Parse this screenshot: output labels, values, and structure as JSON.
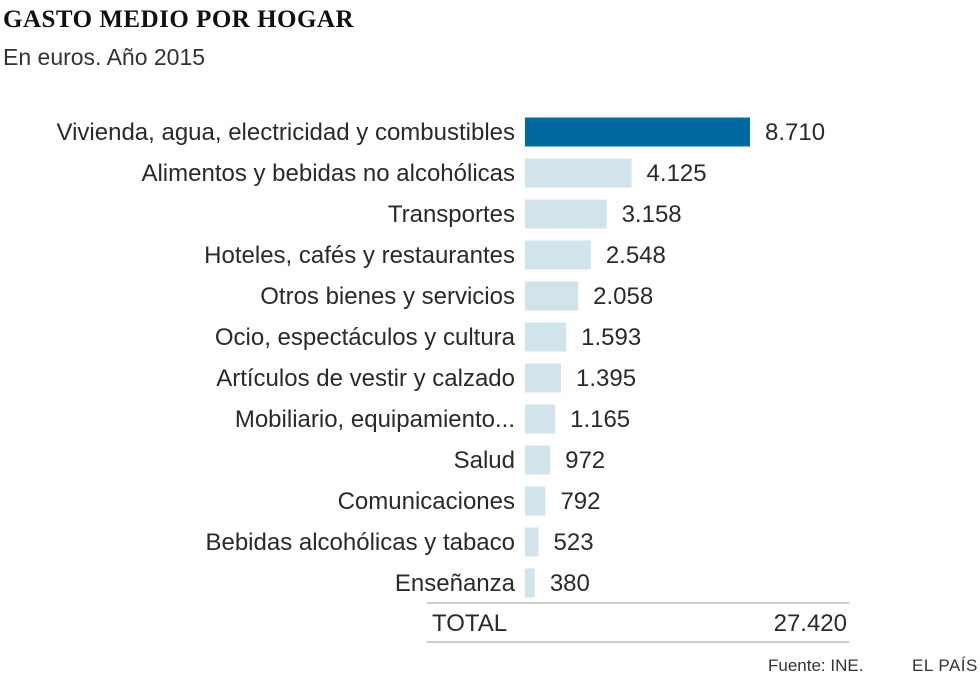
{
  "header": {
    "title": "GASTO MEDIO POR HOGAR",
    "subtitle": "En euros. Año 2015"
  },
  "chart_data": {
    "type": "bar",
    "orientation": "horizontal",
    "title": "GASTO MEDIO POR HOGAR",
    "subtitle": "En euros. Año 2015",
    "categories": [
      "Vivienda, agua, electricidad y combustibles",
      "Alimentos y bebidas no alcohólicas",
      "Transportes",
      "Hoteles, cafés y restaurantes",
      "Otros bienes y servicios",
      "Ocio, espectáculos y cultura",
      "Artículos de vestir y calzado",
      "Mobiliario, equipamiento...",
      "Salud",
      "Comunicaciones",
      "Bebidas alcohólicas y tabaco",
      "Enseñanza"
    ],
    "values": [
      8710,
      4125,
      3158,
      2548,
      2058,
      1593,
      1395,
      1165,
      972,
      792,
      523,
      380
    ],
    "value_labels": [
      "8.710",
      "4.125",
      "3.158",
      "2.548",
      "2.058",
      "1.593",
      "1.395",
      "1.165",
      "972",
      "792",
      "523",
      "380"
    ],
    "highlight_index": 0,
    "colors": {
      "highlight": "#006aa0",
      "default": "#d1e4ec",
      "rule": "#9a9a9a"
    },
    "grid": false,
    "legend": "none",
    "total": {
      "label": "TOTAL",
      "value": 27420,
      "value_label": "27.420"
    }
  },
  "footer": {
    "source": "Fuente: INE.",
    "brand": "EL PAÍS"
  }
}
